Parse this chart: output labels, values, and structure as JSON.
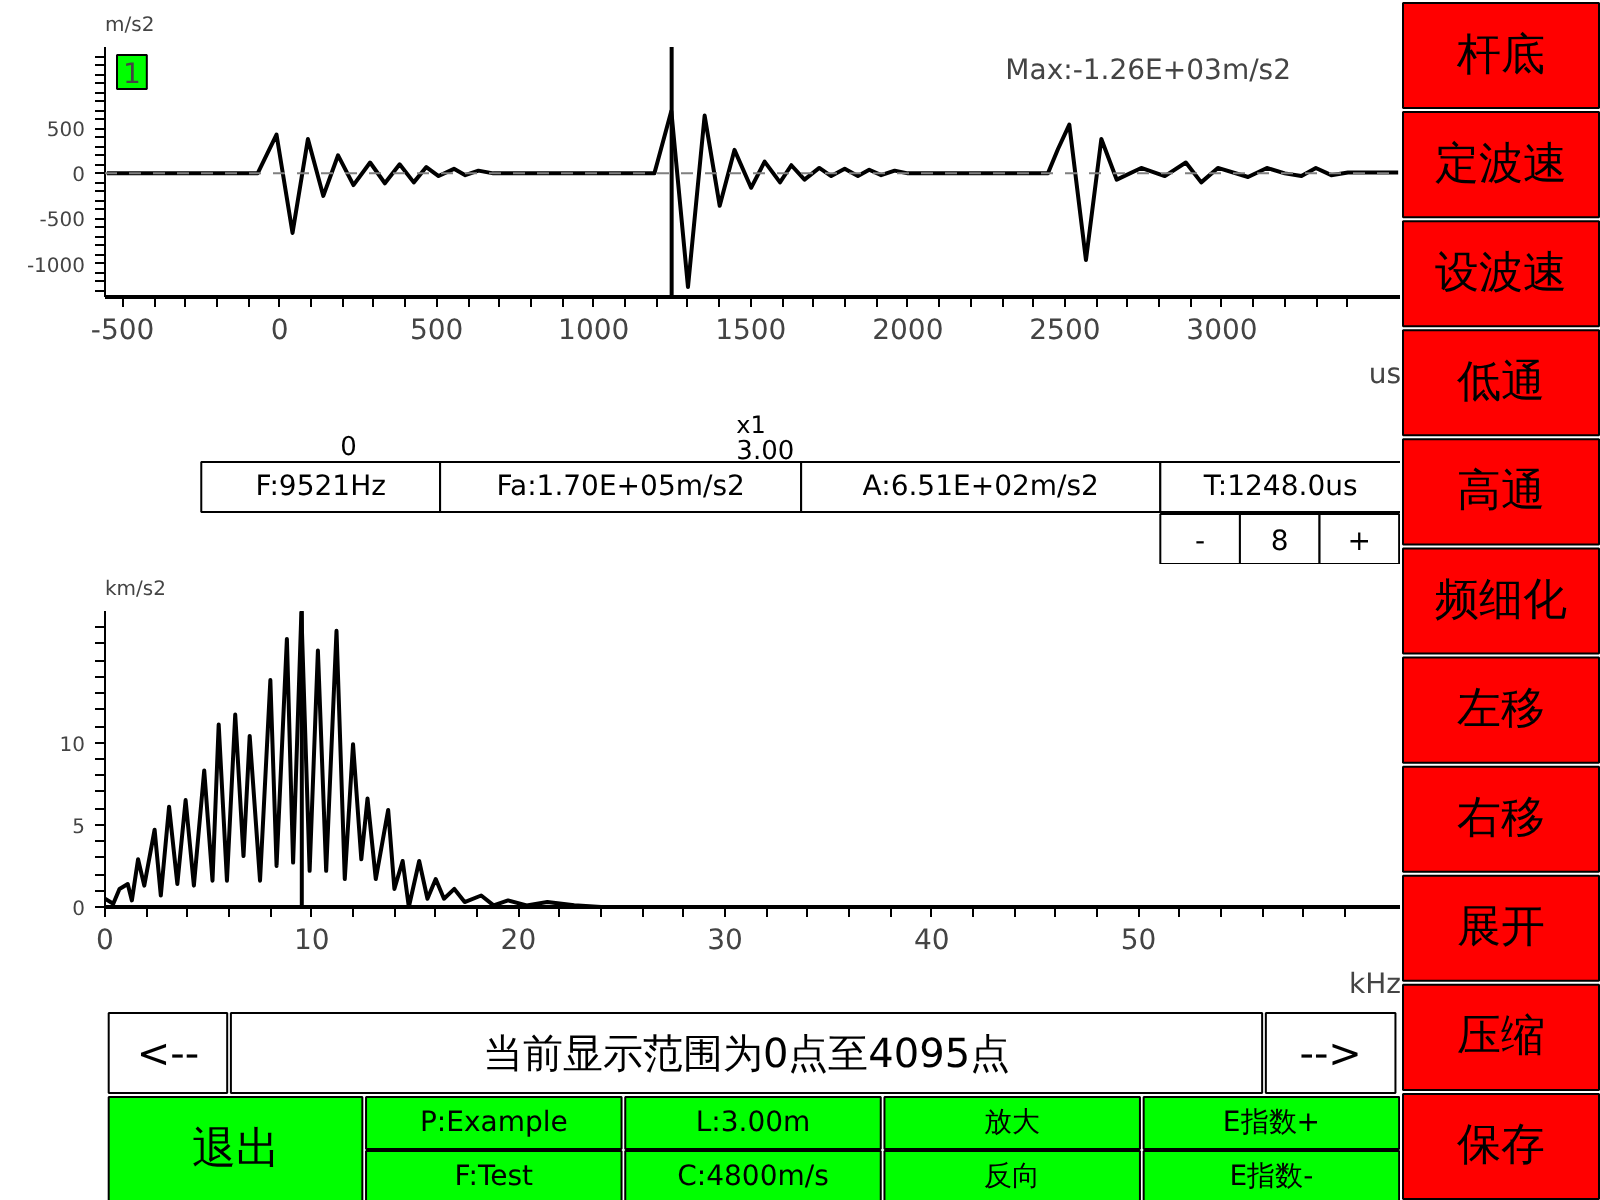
{
  "chart_data": [
    {
      "type": "line",
      "xlabel": "us",
      "ylabel": "m/s2",
      "xlim": [
        -556,
        3570
      ],
      "ylim": [
        -1370,
        1400
      ],
      "xticks": [
        -500,
        {
          "value": -400,
          "label": null
        },
        {
          "value": -300,
          "label": null
        },
        {
          "value": -200,
          "label": null
        },
        {
          "value": -100,
          "label": null
        },
        0,
        {
          "value": 100,
          "label": null
        },
        {
          "value": 200,
          "label": null
        },
        {
          "value": 300,
          "label": null
        },
        {
          "value": 400,
          "label": null
        },
        500,
        {
          "value": 600,
          "label": null
        },
        {
          "value": 700,
          "label": null
        },
        {
          "value": 800,
          "label": null
        },
        {
          "value": 900,
          "label": null
        },
        1000,
        {
          "value": 1100,
          "label": null
        },
        {
          "value": 1200,
          "label": null
        },
        {
          "value": 1300,
          "label": null
        },
        {
          "value": 1400,
          "label": null
        },
        1500,
        {
          "value": 1600,
          "label": null
        },
        {
          "value": 1700,
          "label": null
        },
        {
          "value": 1800,
          "label": null
        },
        {
          "value": 1900,
          "label": null
        },
        2000,
        {
          "value": 2100,
          "label": null
        },
        {
          "value": 2200,
          "label": null
        },
        {
          "value": 2300,
          "label": null
        },
        {
          "value": 2400,
          "label": null
        },
        2500,
        {
          "value": 2600,
          "label": null
        },
        {
          "value": 2700,
          "label": null
        },
        {
          "value": 2800,
          "label": null
        },
        {
          "value": 2900,
          "label": null
        },
        3000,
        {
          "value": 3100,
          "label": null
        },
        {
          "value": 3200,
          "label": null
        },
        {
          "value": 3300,
          "label": null
        },
        {
          "value": 3400,
          "label": null
        }
      ],
      "yticks": [
        {
          "value": -1300,
          "label": null
        },
        {
          "value": -1200,
          "label": null
        },
        {
          "value": -1100,
          "label": null
        },
        -1000,
        {
          "value": -900,
          "label": null
        },
        {
          "value": -800,
          "label": null
        },
        {
          "value": -700,
          "label": null
        },
        {
          "value": -600,
          "label": null
        },
        -500,
        {
          "value": -400,
          "label": null
        },
        {
          "value": -300,
          "label": null
        },
        {
          "value": -200,
          "label": null
        },
        {
          "value": -100,
          "label": null
        },
        0,
        {
          "value": 100,
          "label": null
        },
        {
          "value": 200,
          "label": null
        },
        {
          "value": 300,
          "label": null
        },
        {
          "value": 400,
          "label": null
        },
        500,
        {
          "value": 600,
          "label": null
        },
        {
          "value": 700,
          "label": null
        },
        {
          "value": 800,
          "label": null
        },
        {
          "value": 900,
          "label": null
        },
        {
          "value": 1000,
          "label": null
        },
        {
          "value": 1100,
          "label": null
        },
        {
          "value": 1200,
          "label": null
        },
        {
          "value": 1300,
          "label": null
        }
      ],
      "series": [
        {
          "color": "#000000",
          "x": [
            -550,
            -70,
            -10,
            41,
            90,
            139,
            186,
            235,
            288,
            335,
            382,
            427,
            467,
            506,
            555,
            591,
            633,
            680,
            800,
            950,
            1100,
            1193,
            1204,
            1247,
            1300,
            1353,
            1401,
            1448,
            1501,
            1544,
            1593,
            1629,
            1671,
            1718,
            1756,
            1799,
            1841,
            1877,
            1915,
            1958,
            2000,
            2150,
            2300,
            2446,
            2478,
            2514,
            2567,
            2616,
            2665,
            2743,
            2818,
            2885,
            2934,
            2987,
            3083,
            3143,
            3200,
            3253,
            3299,
            3348,
            3401,
            3561
          ],
          "values": [
            0,
            0,
            430,
            -660,
            380,
            -250,
            200,
            -130,
            120,
            -110,
            100,
            -100,
            70,
            -30,
            50,
            -20,
            30,
            0,
            0,
            0,
            0,
            0,
            140,
            690,
            -1260,
            640,
            -360,
            260,
            -160,
            130,
            -100,
            90,
            -70,
            60,
            -30,
            50,
            -30,
            40,
            -20,
            30,
            0,
            0,
            0,
            0,
            270,
            540,
            -960,
            380,
            -70,
            60,
            -30,
            120,
            -100,
            60,
            -40,
            60,
            0,
            -30,
            60,
            -20,
            10,
            10
          ]
        }
      ],
      "ref_lines": [
        {
          "axis": "x",
          "value": 1248,
          "color": "#000000",
          "line_style": "solid"
        },
        {
          "axis": "y",
          "value": 0,
          "color": "#808080",
          "line_style": "dashed"
        }
      ],
      "annotations": [
        "1",
        "Max:-1.26E+03m/s2",
        "0",
        "x1",
        "3.00"
      ]
    },
    {
      "type": "line",
      "xlabel": "kHz",
      "ylabel": "km/s2",
      "xlim": [
        0,
        62.7
      ],
      "ylim": [
        0,
        18
      ],
      "xticks": [
        0,
        {
          "value": 2,
          "label": null
        },
        {
          "value": 4,
          "label": null
        },
        {
          "value": 6,
          "label": null
        },
        {
          "value": 8,
          "label": null
        },
        10,
        {
          "value": 12,
          "label": null
        },
        {
          "value": 14,
          "label": null
        },
        {
          "value": 16,
          "label": null
        },
        {
          "value": 18,
          "label": null
        },
        20,
        {
          "value": 22,
          "label": null
        },
        {
          "value": 24,
          "label": null
        },
        {
          "value": 26,
          "label": null
        },
        {
          "value": 28,
          "label": null
        },
        30,
        {
          "value": 32,
          "label": null
        },
        {
          "value": 34,
          "label": null
        },
        {
          "value": 36,
          "label": null
        },
        {
          "value": 38,
          "label": null
        },
        40,
        {
          "value": 42,
          "label": null
        },
        {
          "value": 44,
          "label": null
        },
        {
          "value": 46,
          "label": null
        },
        {
          "value": 48,
          "label": null
        },
        50,
        {
          "value": 52,
          "label": null
        },
        {
          "value": 54,
          "label": null
        },
        {
          "value": 56,
          "label": null
        },
        {
          "value": 58,
          "label": null
        },
        {
          "value": 60,
          "label": null
        }
      ],
      "yticks": [
        0,
        {
          "value": 1,
          "label": null
        },
        {
          "value": 2,
          "label": null
        },
        {
          "value": 3,
          "label": null
        },
        {
          "value": 4,
          "label": null
        },
        5,
        {
          "value": 6,
          "label": null
        },
        {
          "value": 7,
          "label": null
        },
        {
          "value": 8,
          "label": null
        },
        {
          "value": 9,
          "label": null
        },
        10,
        {
          "value": 11,
          "label": null
        },
        {
          "value": 12,
          "label": null
        },
        {
          "value": 13,
          "label": null
        },
        {
          "value": 14,
          "label": null
        },
        {
          "value": 15,
          "label": null
        },
        {
          "value": 16,
          "label": null
        },
        {
          "value": 17,
          "label": null
        }
      ],
      "series": [
        {
          "color": "#000000",
          "x": [
            0,
            0.4,
            0.7,
            1.1,
            1.3,
            1.6,
            1.9,
            2.4,
            2.7,
            3.1,
            3.5,
            3.9,
            4.3,
            4.8,
            5.2,
            5.5,
            5.9,
            6.3,
            6.7,
            7.0,
            7.5,
            8.0,
            8.3,
            8.8,
            9.1,
            9.5,
            9.9,
            10.3,
            10.7,
            11.2,
            11.6,
            12.0,
            12.4,
            12.7,
            13.1,
            13.7,
            14.0,
            14.4,
            14.7,
            15.2,
            15.6,
            16.0,
            16.4,
            16.9,
            17.4,
            18.2,
            18.8,
            19.5,
            20.4,
            21.4,
            22.7,
            24.0,
            30.0,
            62.6
          ],
          "values": [
            0.5,
            0.2,
            1.1,
            1.4,
            0.4,
            2.9,
            1.3,
            4.7,
            0.7,
            6.1,
            1.4,
            6.5,
            1.3,
            8.3,
            1.6,
            11.1,
            1.6,
            11.7,
            3.1,
            10.4,
            1.6,
            13.8,
            2.5,
            16.3,
            2.7,
            17.9,
            2.2,
            15.6,
            2.2,
            16.8,
            1.7,
            9.9,
            2.9,
            6.6,
            1.7,
            5.9,
            1.1,
            2.8,
            0,
            2.8,
            0.5,
            1.7,
            0.5,
            1.1,
            0.3,
            0.7,
            0.1,
            0.4,
            0.1,
            0.3,
            0.1,
            0,
            0,
            0
          ]
        }
      ],
      "ref_lines": [
        {
          "axis": "x",
          "value": 9.521,
          "color": "#000000",
          "line_style": "solid"
        }
      ],
      "annotations": [
        "F:9521Hz",
        "Fa:1.70E+05m/s2",
        "A:6.51E+02m/s2",
        "T:1248.0us",
        "-",
        "8",
        "+"
      ]
    },
    {
      "type": "other",
      "annotations": [
        "杆底",
        "定波速",
        "设波速",
        "低通",
        "高通",
        "频细化",
        "左移",
        "右移",
        "展开",
        "压缩",
        "保存"
      ]
    },
    {
      "type": "other",
      "annotations": [
        "<--",
        "当前显示范围为0点至4095点",
        "-->",
        "退出",
        "P:Example",
        "L:3.00m",
        "放大",
        "E指数+",
        "F:Test",
        "C:4800m/s",
        "反向",
        "E指数-"
      ]
    }
  ]
}
